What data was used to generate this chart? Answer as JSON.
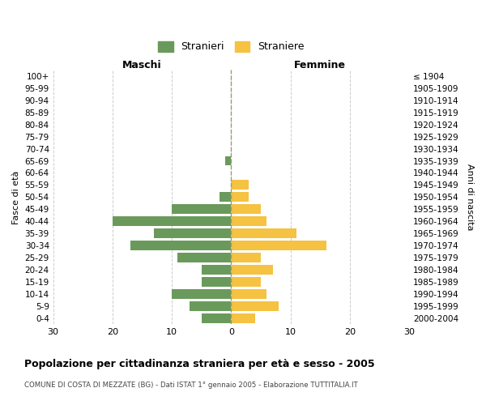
{
  "age_groups": [
    "0-4",
    "5-9",
    "10-14",
    "15-19",
    "20-24",
    "25-29",
    "30-34",
    "35-39",
    "40-44",
    "45-49",
    "50-54",
    "55-59",
    "60-64",
    "65-69",
    "70-74",
    "75-79",
    "80-84",
    "85-89",
    "90-94",
    "95-99",
    "100+"
  ],
  "birth_years": [
    "2000-2004",
    "1995-1999",
    "1990-1994",
    "1985-1989",
    "1980-1984",
    "1975-1979",
    "1970-1974",
    "1965-1969",
    "1960-1964",
    "1955-1959",
    "1950-1954",
    "1945-1949",
    "1940-1944",
    "1935-1939",
    "1930-1934",
    "1925-1929",
    "1920-1924",
    "1915-1919",
    "1910-1914",
    "1905-1909",
    "≤ 1904"
  ],
  "males": [
    5,
    7,
    10,
    5,
    5,
    9,
    17,
    13,
    20,
    10,
    2,
    0,
    0,
    1,
    0,
    0,
    0,
    0,
    0,
    0,
    0
  ],
  "females": [
    4,
    8,
    6,
    5,
    7,
    5,
    16,
    11,
    6,
    5,
    3,
    3,
    0,
    0,
    0,
    0,
    0,
    0,
    0,
    0,
    0
  ],
  "male_color": "#6a9a5b",
  "female_color": "#f5c242",
  "bar_height": 0.8,
  "title": "Popolazione per cittadinanza straniera per età e sesso - 2005",
  "subtitle": "COMUNE DI COSTA DI MEZZATE (BG) - Dati ISTAT 1° gennaio 2005 - Elaborazione TUTTITALIA.IT",
  "xlabel_left": "Maschi",
  "xlabel_right": "Femmine",
  "ylabel_left": "Fasce di età",
  "ylabel_right": "Anni di nascita",
  "legend_male": "Stranieri",
  "legend_female": "Straniere",
  "xlim": [
    -30,
    30
  ],
  "xticks": [
    -30,
    -20,
    -10,
    0,
    10,
    20,
    30
  ],
  "xtick_labels": [
    "30",
    "20",
    "10",
    "0",
    "10",
    "20",
    "30"
  ],
  "background_color": "#ffffff",
  "grid_color": "#cccccc",
  "dashed_line_color": "#999977"
}
